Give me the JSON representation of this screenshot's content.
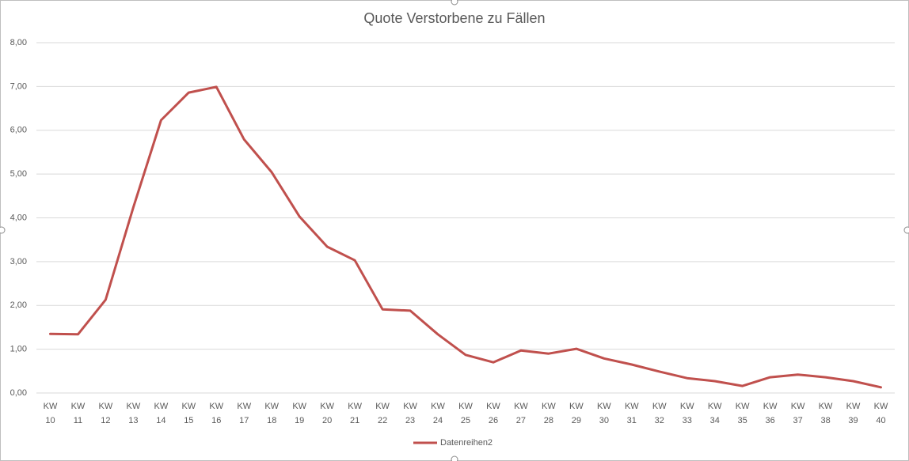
{
  "chart_data": {
    "type": "line",
    "title": "Quote Verstorbene zu Fällen",
    "categories": [
      "KW 10",
      "KW 11",
      "KW 12",
      "KW 13",
      "KW 14",
      "KW 15",
      "KW 16",
      "KW 17",
      "KW 18",
      "KW 19",
      "KW 20",
      "KW 21",
      "KW 22",
      "KW 23",
      "KW 24",
      "KW 25",
      "KW 26",
      "KW 27",
      "KW 28",
      "KW 29",
      "KW 30",
      "KW 31",
      "KW 32",
      "KW 33",
      "KW 34",
      "KW 35",
      "KW 36",
      "KW 37",
      "KW 38",
      "KW 39",
      "KW 40"
    ],
    "series": [
      {
        "name": "Datenreihen2",
        "color": "#c0504d",
        "values": [
          1.35,
          1.34,
          2.13,
          4.24,
          6.23,
          6.86,
          6.99,
          5.79,
          5.04,
          4.03,
          3.34,
          3.03,
          1.91,
          1.88,
          1.34,
          0.87,
          0.7,
          0.97,
          0.9,
          1.01,
          0.79,
          0.65,
          0.49,
          0.34,
          0.27,
          0.16,
          0.36,
          0.42,
          0.36,
          0.27,
          0.13
        ]
      }
    ],
    "ylim": [
      0,
      8
    ],
    "yticks": [
      {
        "value": 0,
        "label": "0,00"
      },
      {
        "value": 1,
        "label": "1,00"
      },
      {
        "value": 2,
        "label": "2,00"
      },
      {
        "value": 3,
        "label": "3,00"
      },
      {
        "value": 4,
        "label": "4,00"
      },
      {
        "value": 5,
        "label": "5,00"
      },
      {
        "value": 6,
        "label": "6,00"
      },
      {
        "value": 7,
        "label": "7,00"
      },
      {
        "value": 8,
        "label": "8,00"
      }
    ],
    "grid": true,
    "legend": "bottom"
  }
}
